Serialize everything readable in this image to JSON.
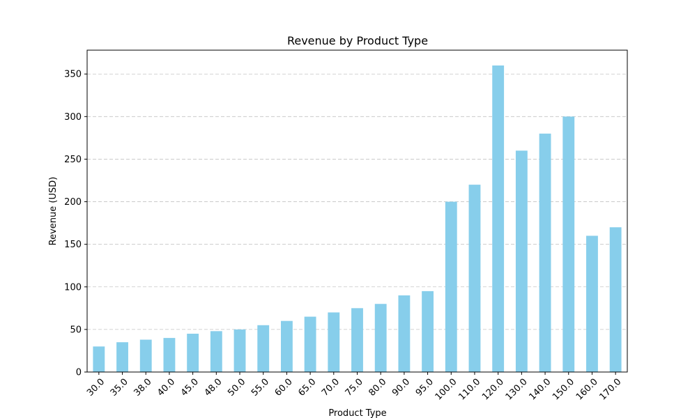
{
  "chart_data": {
    "type": "bar",
    "title": "Revenue by Product Type",
    "xlabel": "Product Type",
    "ylabel": "Revenue (USD)",
    "categories": [
      "30.0",
      "35.0",
      "38.0",
      "40.0",
      "45.0",
      "48.0",
      "50.0",
      "55.0",
      "60.0",
      "65.0",
      "70.0",
      "75.0",
      "80.0",
      "90.0",
      "95.0",
      "100.0",
      "110.0",
      "120.0",
      "130.0",
      "140.0",
      "150.0",
      "160.0",
      "170.0"
    ],
    "values": [
      30,
      35,
      38,
      40,
      45,
      48,
      50,
      55,
      60,
      65,
      70,
      75,
      80,
      90,
      95,
      200,
      220,
      360,
      260,
      280,
      300,
      160,
      170
    ],
    "ylim": [
      0,
      378
    ],
    "yticks": [
      0,
      50,
      100,
      150,
      200,
      250,
      300,
      350
    ],
    "grid": "y-dashed",
    "bar_color": "#87ceeb",
    "legend": "none"
  }
}
